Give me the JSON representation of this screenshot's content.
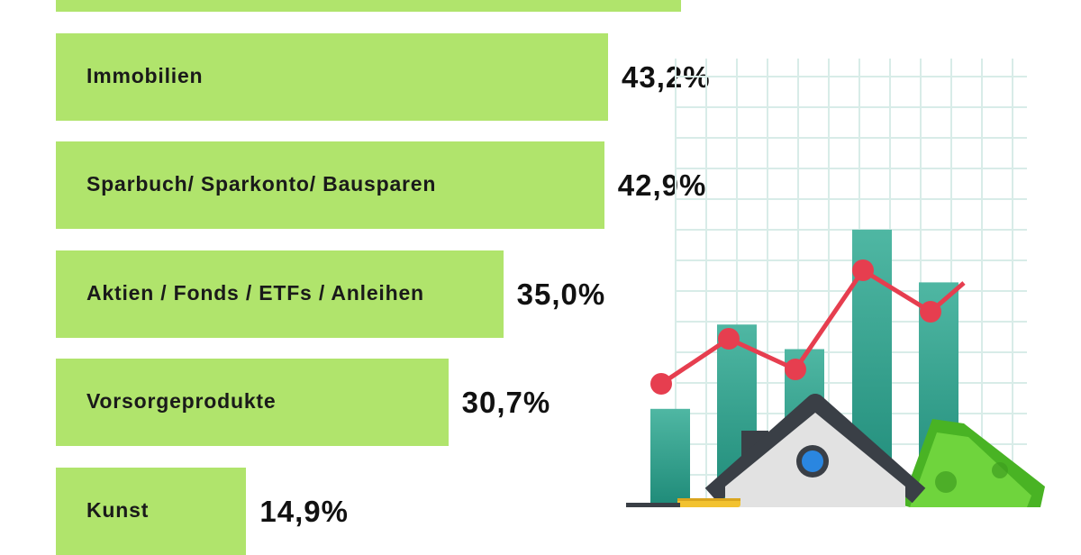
{
  "chart_data": {
    "type": "bar",
    "orientation": "horizontal",
    "categories": [
      "",
      "Immobilien",
      "Sparbuch/ Sparkonto/ Bausparen",
      "Aktien / Fonds / ETFs / Anleihen",
      "Vorsorgeprodukte",
      "Kunst"
    ],
    "value_labels": [
      "",
      "43,2%",
      "42,9%",
      "35,0%",
      "30,7%",
      "14,9%"
    ],
    "values": [
      48.9,
      43.2,
      42.9,
      35.0,
      30.7,
      14.9
    ],
    "unit": "%",
    "xlim": [
      0,
      100
    ],
    "grid": false,
    "legend": "none"
  },
  "colors": {
    "bar": "#b0e46c",
    "label_text": "#1a1a1a",
    "value_text": "#111111",
    "grid_line": "#d8ece8",
    "trend_line": "#e63e4f",
    "column_top": "#4fb7a3",
    "column_bottom": "#1e8a78",
    "roof": "#3a3f46",
    "house_wall": "#e2e2e2",
    "window": "#2a86e0",
    "money": "#5cc72e",
    "coins": "#f2c230"
  },
  "illustration": {
    "name": "house-finance-illustration",
    "trend_points": [
      0.22,
      0.47,
      0.3,
      0.85,
      0.62,
      0.78
    ],
    "column_levels": [
      0.28,
      0.52,
      0.45,
      0.79,
      0.64
    ]
  }
}
